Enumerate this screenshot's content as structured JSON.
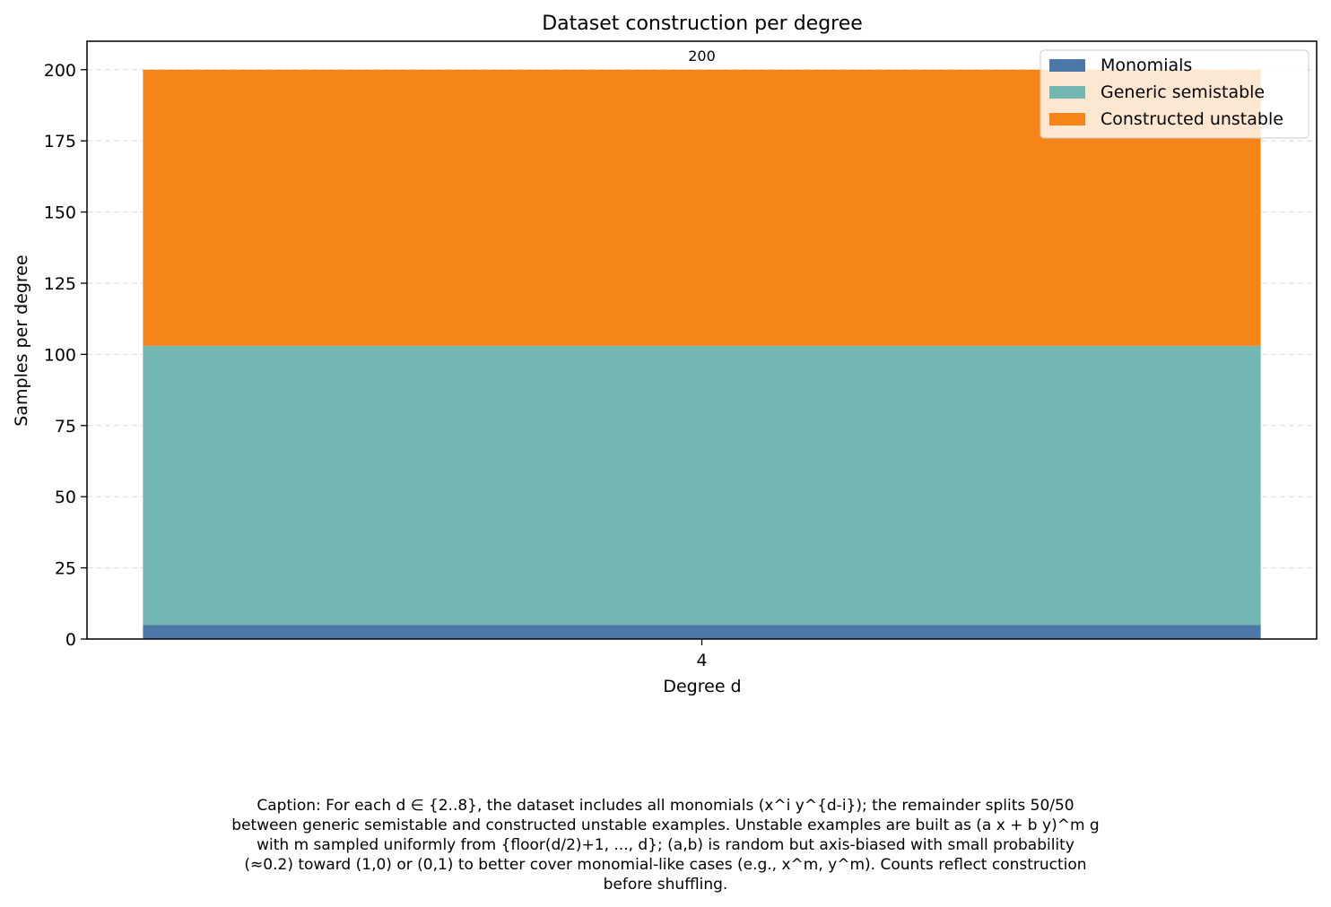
{
  "chart_data": {
    "type": "bar",
    "stacked": true,
    "title": "Dataset construction per degree",
    "xlabel": "Degree d",
    "ylabel": "Samples per degree",
    "categories": [
      "4"
    ],
    "ylim": [
      0,
      210
    ],
    "yticks": [
      "0",
      "25",
      "50",
      "75",
      "100",
      "125",
      "150",
      "175",
      "200"
    ],
    "grid": "y-dashed",
    "legend_position": "top-right",
    "series": [
      {
        "name": "Monomials",
        "values": [
          5
        ],
        "color": "#4c78a8"
      },
      {
        "name": "Generic semistable",
        "values": [
          98
        ],
        "color": "#72b7b2"
      },
      {
        "name": "Constructed unstable",
        "values": [
          97
        ],
        "color": "#f58518"
      }
    ],
    "total_labels": [
      "200"
    ]
  },
  "caption": {
    "lines": [
      "Caption: For each d ∈ {2..8}, the dataset includes all monomials (x^i y^{d-i}); the remainder splits 50/50",
      "between generic semistable and constructed unstable examples. Unstable examples are built as (a x + b y)^m g",
      "with m sampled uniformly from {floor(d/2)+1, ..., d}; (a,b) is random but axis-biased with small probability",
      "(≈0.2) toward (1,0) or (0,1) to better cover monomial-like cases (e.g., x^m, y^m). Counts reflect construction",
      "before shuffling."
    ]
  }
}
